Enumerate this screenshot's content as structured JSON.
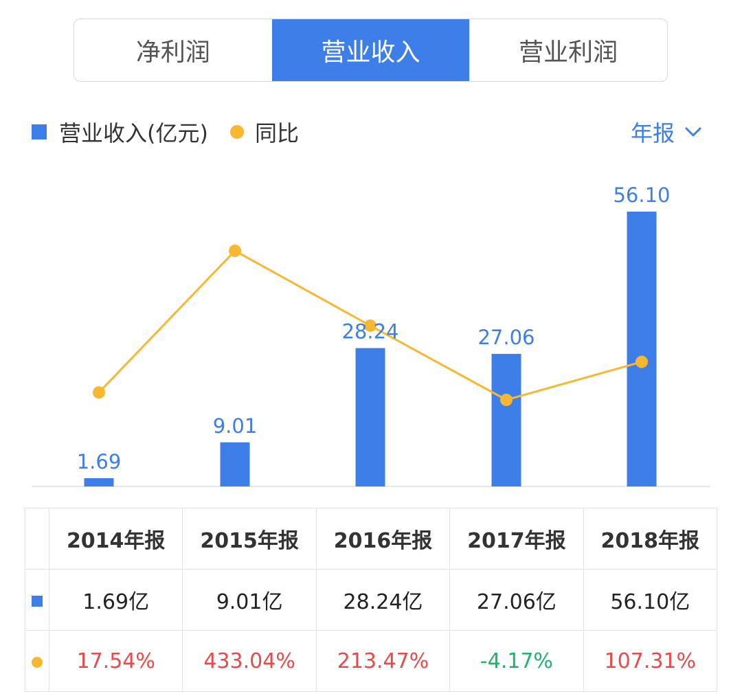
{
  "tabs": [
    {
      "label": "净利润",
      "active": false
    },
    {
      "label": "营业收入",
      "active": true
    },
    {
      "label": "营业利润",
      "active": false
    }
  ],
  "legend": {
    "revenue_label": "营业收入(亿元)",
    "yoy_label": "同比"
  },
  "period_selector": {
    "label": "年报",
    "icon": "chevron-down-icon"
  },
  "colors": {
    "bar": "#3e7ee8",
    "line": "#f7b731",
    "positive": "#e84a4a",
    "negative": "#1fb36b"
  },
  "chart_data": {
    "type": "bar",
    "categories": [
      "2014年报",
      "2015年报",
      "2016年报",
      "2017年报",
      "2018年报"
    ],
    "series": [
      {
        "name": "营业收入(亿元)",
        "type": "bar",
        "values": [
          1.69,
          9.01,
          28.24,
          27.06,
          56.1
        ],
        "labels": [
          "1.69",
          "9.01",
          "28.24",
          "27.06",
          "56.10"
        ]
      },
      {
        "name": "同比",
        "type": "line",
        "values": [
          17.54,
          433.04,
          213.47,
          -4.17,
          107.31
        ]
      }
    ],
    "grid": false,
    "legend_position": "top-left"
  },
  "table": {
    "headers": [
      "2014年报",
      "2015年报",
      "2016年报",
      "2017年报",
      "2018年报"
    ],
    "revenue": [
      "1.69亿",
      "9.01亿",
      "28.24亿",
      "27.06亿",
      "56.10亿"
    ],
    "yoy": [
      "17.54%",
      "433.04%",
      "213.47%",
      "-4.17%",
      "107.31%"
    ]
  }
}
